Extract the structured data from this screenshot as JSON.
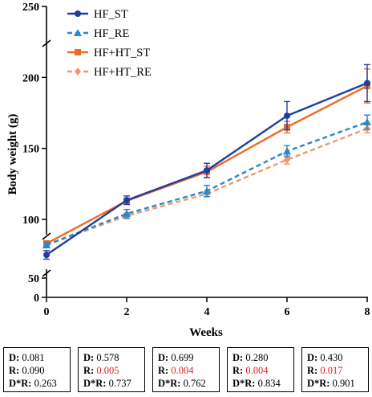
{
  "chart_data": {
    "type": "line",
    "xlabel": "Weeks",
    "ylabel": "Body weight (g)",
    "x": [
      0,
      2,
      4,
      6,
      8
    ],
    "x_ticks": [
      "0",
      "2",
      "4",
      "6",
      "8"
    ],
    "y_ticks_upper": [
      "100",
      "150",
      "200",
      "250"
    ],
    "y_ticks_lower": [
      "0",
      "50"
    ],
    "ylim_upper": [
      70,
      250
    ],
    "ylim_lower": [
      0,
      50
    ],
    "axis_break": true,
    "legend_position": "top-left",
    "series": [
      {
        "name": "HF_ST",
        "values": [
          75,
          113.5,
          134.5,
          173,
          196
        ],
        "errors": [
          3,
          3,
          5,
          10,
          13
        ],
        "color": "#1f3f9e",
        "dash": "solid",
        "marker": "circle"
      },
      {
        "name": "HF_RE",
        "values": [
          82,
          104,
          120,
          148,
          168.5
        ],
        "errors": [
          2,
          3,
          4,
          4,
          5
        ],
        "color": "#2a87c8",
        "dash": "dashed",
        "marker": "triangle"
      },
      {
        "name": "HF+HT_ST",
        "values": [
          83,
          113,
          133.5,
          165,
          194
        ],
        "errors": [
          2,
          2,
          4,
          4,
          12
        ],
        "color": "#ef6a24",
        "dash": "solid",
        "marker": "square"
      },
      {
        "name": "HF+HT_RE",
        "values": [
          82,
          102.5,
          118,
          142,
          164
        ],
        "errors": [
          2,
          2,
          2,
          3,
          3
        ],
        "color": "#f5956a",
        "dash": "dashed",
        "marker": "diamond"
      }
    ]
  },
  "stats": [
    {
      "D": "0.081",
      "R": "0.090",
      "DR": "0.263",
      "R_sig": false
    },
    {
      "D": "0.578",
      "R": "0.005",
      "DR": "0.737",
      "R_sig": true
    },
    {
      "D": "0.699",
      "R": "0.004",
      "DR": "0.762",
      "R_sig": true
    },
    {
      "D": "0.280",
      "R": "0.004",
      "DR": "0.834",
      "R_sig": true
    },
    {
      "D": "0.430",
      "R": "0.017",
      "DR": "0.901",
      "R_sig": true
    }
  ],
  "stat_labels": {
    "d": "D: ",
    "r": "R: ",
    "dr": "D*R: "
  }
}
